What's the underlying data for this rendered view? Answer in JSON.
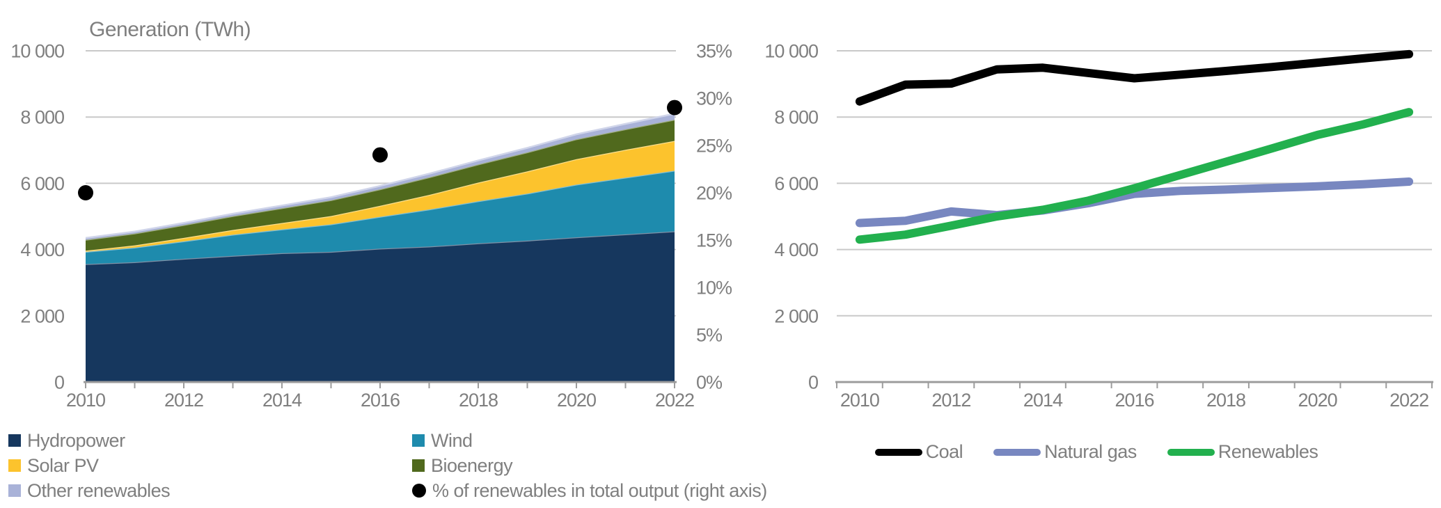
{
  "page": {
    "background": "#ffffff"
  },
  "chart_data": [
    {
      "type": "area",
      "stacked": true,
      "title": "Generation (TWh)",
      "x": [
        2010,
        2011,
        2012,
        2013,
        2014,
        2015,
        2016,
        2017,
        2018,
        2019,
        2020,
        2021,
        2022
      ],
      "x_tick_labels": [
        "2010",
        "2012",
        "2014",
        "2016",
        "2018",
        "2020",
        "2022"
      ],
      "y_axis": {
        "lim": [
          0,
          10000
        ],
        "ticks": [
          {
            "value": 0,
            "label": "0"
          },
          {
            "value": 2000,
            "label": "2 000"
          },
          {
            "value": 4000,
            "label": "4 000"
          },
          {
            "value": 6000,
            "label": "6 000"
          },
          {
            "value": 8000,
            "label": "8 000"
          },
          {
            "value": 10000,
            "label": "10 000"
          }
        ]
      },
      "right_axis": {
        "lim": [
          0,
          35
        ],
        "ticks": [
          {
            "value": 0,
            "label": "0%"
          },
          {
            "value": 5,
            "label": "5%"
          },
          {
            "value": 10,
            "label": "10%"
          },
          {
            "value": 15,
            "label": "15%"
          },
          {
            "value": 20,
            "label": "20%"
          },
          {
            "value": 25,
            "label": "25%"
          },
          {
            "value": 30,
            "label": "30%"
          },
          {
            "value": 35,
            "label": "35%"
          }
        ]
      },
      "series": [
        {
          "name": "Hydropower",
          "color": "#16375e",
          "values": [
            3560,
            3620,
            3720,
            3810,
            3890,
            3930,
            4030,
            4090,
            4190,
            4270,
            4370,
            4460,
            4550
          ]
        },
        {
          "name": "Wind",
          "color": "#1e8bad",
          "values": [
            370,
            440,
            530,
            640,
            720,
            830,
            960,
            1120,
            1270,
            1420,
            1590,
            1710,
            1830
          ]
        },
        {
          "name": "Solar PV",
          "color": "#fcc32d",
          "values": [
            35,
            65,
            100,
            140,
            190,
            250,
            330,
            440,
            560,
            670,
            770,
            840,
            900
          ]
        },
        {
          "name": "Bioenergy",
          "color": "#50691d",
          "values": [
            330,
            360,
            390,
            420,
            450,
            480,
            500,
            530,
            550,
            575,
            600,
            620,
            640
          ]
        },
        {
          "name": "Other renewables",
          "color": "#a9b2d8",
          "values": [
            55,
            60,
            65,
            72,
            80,
            90,
            100,
            110,
            120,
            135,
            150,
            165,
            180
          ]
        }
      ],
      "dots": {
        "name": "% of renewables in total output (right axis)",
        "color": "#000000",
        "axis": "right",
        "points": [
          {
            "x": 2010,
            "y": 20
          },
          {
            "x": 2016,
            "y": 24
          },
          {
            "x": 2022,
            "y": 29
          }
        ]
      },
      "legend_columns": [
        [
          {
            "label": "Hydropower",
            "color": "#16375e",
            "marker": "square"
          },
          {
            "label": "Solar PV",
            "color": "#fcc32d",
            "marker": "square"
          },
          {
            "label": "Other renewables",
            "color": "#a9b2d8",
            "marker": "square"
          }
        ],
        [
          {
            "label": "Wind",
            "color": "#1e8bad",
            "marker": "square"
          },
          {
            "label": "Bioenergy",
            "color": "#50691d",
            "marker": "square"
          },
          {
            "label": "% of renewables in total output (right axis)",
            "color": "#000000",
            "marker": "dot"
          }
        ]
      ],
      "grid": "horizontal",
      "legend_position": "bottom-left"
    },
    {
      "type": "line",
      "x": [
        2010,
        2011,
        2012,
        2013,
        2014,
        2015,
        2016,
        2017,
        2018,
        2019,
        2020,
        2021,
        2022
      ],
      "x_tick_labels": [
        "2010",
        "2012",
        "2014",
        "2016",
        "2018",
        "2020",
        "2022"
      ],
      "y_axis": {
        "lim": [
          0,
          10000
        ],
        "ticks": [
          {
            "value": 0,
            "label": "0"
          },
          {
            "value": 2000,
            "label": "2 000"
          },
          {
            "value": 4000,
            "label": "4 000"
          },
          {
            "value": 6000,
            "label": "6 000"
          },
          {
            "value": 8000,
            "label": "8 000"
          },
          {
            "value": 10000,
            "label": "10 000"
          }
        ]
      },
      "series": [
        {
          "name": "Coal",
          "color": "#000000",
          "values": [
            8470,
            8980,
            9010,
            9440,
            9490,
            9330,
            9170,
            9280,
            9390,
            9510,
            9640,
            9770,
            9900
          ]
        },
        {
          "name": "Natural gas",
          "color": "#7887c0",
          "values": [
            4800,
            4870,
            5150,
            5040,
            5180,
            5400,
            5680,
            5770,
            5810,
            5860,
            5910,
            5970,
            6050
          ]
        },
        {
          "name": "Renewables",
          "color": "#22b04e",
          "values": [
            4300,
            4450,
            4720,
            5000,
            5200,
            5480,
            5850,
            6250,
            6650,
            7050,
            7460,
            7780,
            8150
          ]
        }
      ],
      "grid": "horizontal",
      "legend_position": "bottom-center"
    }
  ]
}
